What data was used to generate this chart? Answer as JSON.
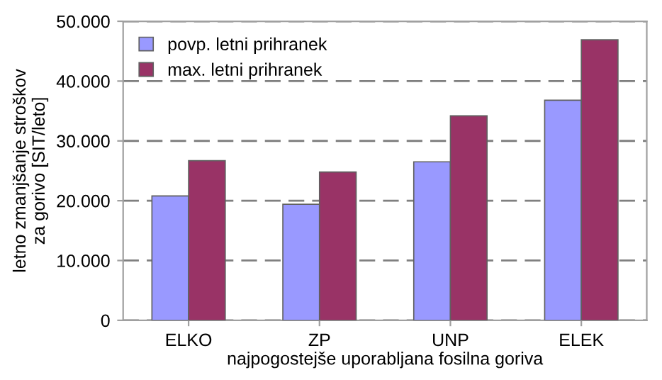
{
  "chart_data": {
    "type": "bar",
    "xlabel": "najpogostejše uporabljana fosilna goriva",
    "ylabel": "letno zmanjšanje stroškov\nza gorivo [SIT/leto]",
    "categories": [
      "ELKO",
      "ZP",
      "UNP",
      "ELEK"
    ],
    "series": [
      {
        "name": "povp. letni prihranek",
        "color": "#9999ff",
        "values": [
          20800,
          19400,
          26500,
          36800
        ]
      },
      {
        "name": "max. letni prihranek",
        "color": "#993366",
        "values": [
          26700,
          24800,
          34200,
          46900
        ]
      }
    ],
    "ylim": [
      0,
      50000
    ],
    "yticks": [
      0,
      {
        "value": 10000,
        "label": "10.000"
      },
      {
        "value": 20000,
        "label": "20.000"
      },
      {
        "value": 30000,
        "label": "30.000"
      },
      {
        "value": 40000,
        "label": "40.000"
      },
      {
        "value": 50000,
        "label": "50.000"
      }
    ],
    "grid": "y",
    "legend": "top left"
  }
}
